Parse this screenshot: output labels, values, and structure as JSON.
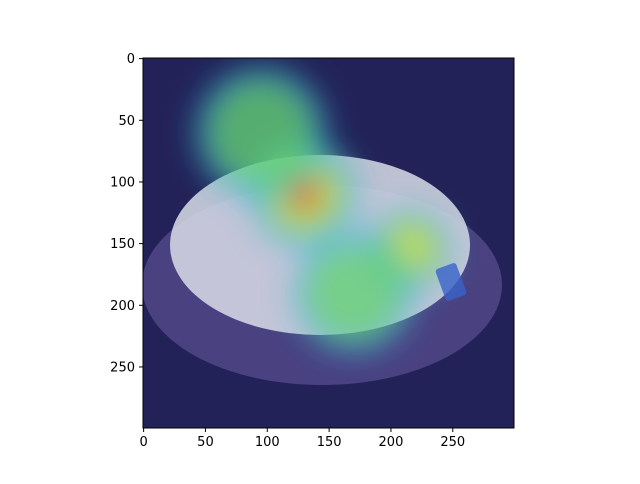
{
  "chart_data": {
    "type": "heatmap",
    "title": "",
    "xlabel": "",
    "ylabel": "",
    "image_size": [
      300,
      300
    ],
    "xlim": [
      0,
      299
    ],
    "ylim": [
      299,
      0
    ],
    "x_ticks": [
      "0",
      "50",
      "100",
      "150",
      "200",
      "250"
    ],
    "y_ticks": [
      "0",
      "50",
      "100",
      "150",
      "200",
      "250"
    ],
    "x_tick_values": [
      0,
      50,
      100,
      150,
      200,
      250
    ],
    "y_tick_values": [
      0,
      50,
      100,
      150,
      200,
      250
    ],
    "colormap": "jet",
    "colors": {
      "low": "#16166e",
      "mid_low": "#27b4d6",
      "mid": "#7ee04a",
      "mid_high": "#f3e13a",
      "high": "#e8342a"
    },
    "hotspots": [
      {
        "x": 130,
        "y": 110,
        "radius": 45,
        "intensity": 1.0
      },
      {
        "x": 215,
        "y": 155,
        "radius": 35,
        "intensity": 0.8
      },
      {
        "x": 95,
        "y": 60,
        "radius": 55,
        "intensity": 0.55
      },
      {
        "x": 170,
        "y": 190,
        "radius": 50,
        "intensity": 0.45
      }
    ]
  }
}
